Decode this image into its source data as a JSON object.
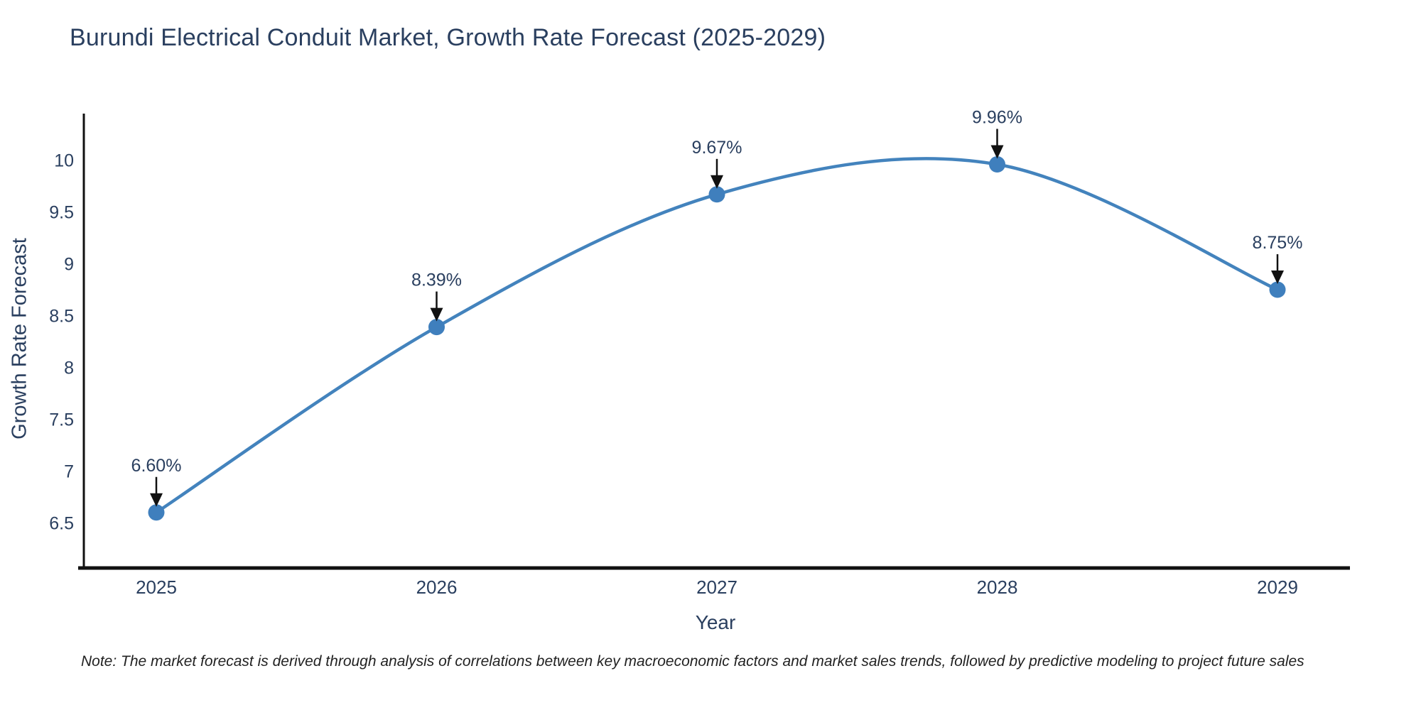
{
  "chart_data": {
    "type": "line",
    "title": "Burundi Electrical Conduit Market, Growth Rate Forecast (2025-2029)",
    "xlabel": "Year",
    "ylabel": "Growth Rate Forecast",
    "categories": [
      "2025",
      "2026",
      "2027",
      "2028",
      "2029"
    ],
    "series": [
      {
        "name": "Growth Rate Forecast",
        "values": [
          6.6,
          8.39,
          9.67,
          9.96,
          8.75
        ],
        "point_labels": [
          "6.60%",
          "8.39%",
          "9.67%",
          "9.96%",
          "8.75%"
        ]
      }
    ],
    "yticks": [
      6.5,
      7,
      7.5,
      8,
      8.5,
      9,
      9.5,
      10
    ],
    "ylim": [
      6.05,
      10.45
    ],
    "grid": false,
    "legend_position": "none",
    "line_shape": "spline",
    "colors": {
      "line": "#4383bd",
      "marker": "#3f7fbd",
      "axis": "#111111",
      "text": "#2a3f5f",
      "arrow": "#111111",
      "note_text": "#222222"
    },
    "note": "Note: The market forecast is derived through analysis of correlations between key macroeconomic factors and market sales trends, followed by predictive modeling to project future sales"
  }
}
